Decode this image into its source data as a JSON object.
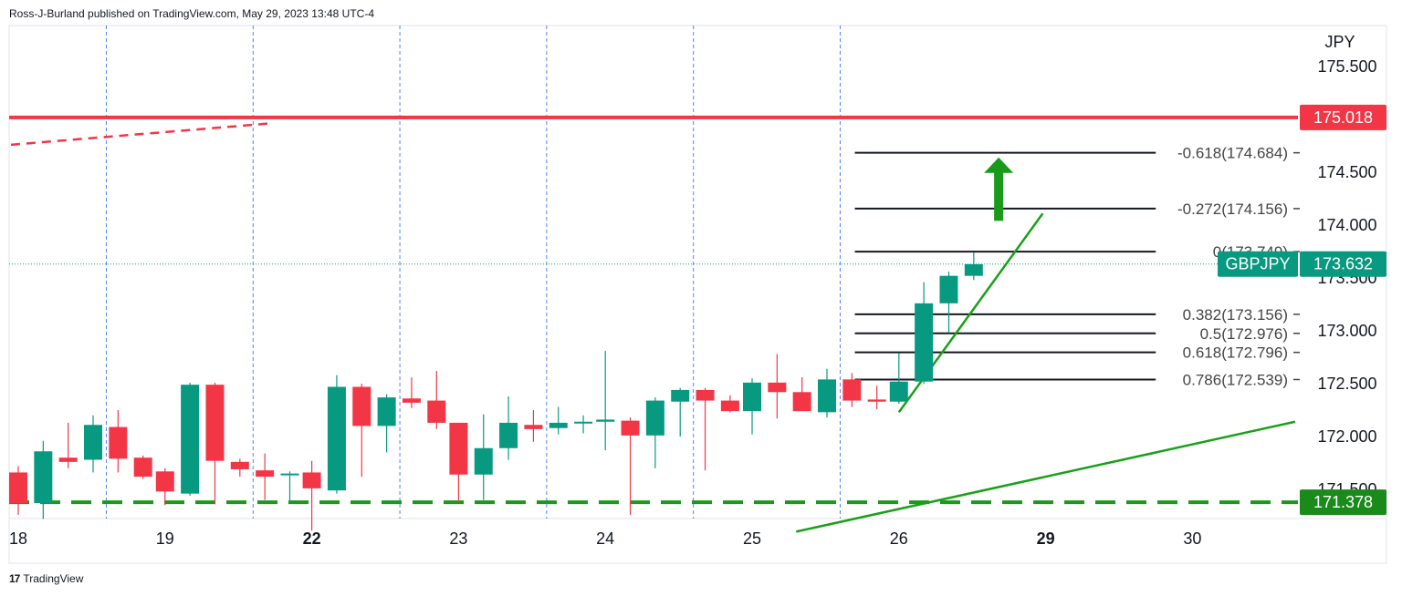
{
  "header": {
    "attribution": "Ross-J-Burland published on TradingView.com, May 29, 2023 13:48 UTC-4"
  },
  "footer": {
    "logo_text": "TradingView"
  },
  "colors": {
    "up": "#089981",
    "down": "#f23645",
    "resistance": "#f23645",
    "support": "#1a9a1a",
    "trend": "#18a018",
    "fib": "#131722",
    "arrow": "#1a9a1a",
    "grid": "#2962ff"
  },
  "chart_data": {
    "type": "candlestick",
    "symbol": "GBPJPY",
    "currency": "JPY",
    "last_price": 173.632,
    "y_ticks": [
      "175.500",
      "174.500",
      "174.000",
      "173.500",
      "173.000",
      "172.500",
      "172.000",
      "171.500"
    ],
    "y_tick_values": [
      175.5,
      174.5,
      174.0,
      173.5,
      173.0,
      172.5,
      172.0,
      171.5
    ],
    "ylim": [
      171.1,
      175.9
    ],
    "x_ticks": [
      {
        "label": "18",
        "day": 0,
        "bold": false
      },
      {
        "label": "19",
        "day": 1,
        "bold": false
      },
      {
        "label": "22",
        "day": 2,
        "bold": true
      },
      {
        "label": "23",
        "day": 3,
        "bold": false
      },
      {
        "label": "24",
        "day": 4,
        "bold": false
      },
      {
        "label": "25",
        "day": 5,
        "bold": false
      },
      {
        "label": "26",
        "day": 6,
        "bold": false
      },
      {
        "label": "29",
        "day": 7,
        "bold": true
      },
      {
        "label": "30",
        "day": 8,
        "bold": false
      }
    ],
    "session_separators": [
      0.6,
      1.6,
      2.6,
      3.6,
      4.6,
      5.6
    ],
    "candles": [
      {
        "t": 0.0,
        "o": 171.66,
        "h": 171.72,
        "l": 171.26,
        "c": 171.37
      },
      {
        "t": 0.17,
        "o": 171.37,
        "h": 171.96,
        "l": 171.22,
        "c": 171.86
      },
      {
        "t": 0.34,
        "o": 171.8,
        "h": 172.13,
        "l": 171.7,
        "c": 171.76
      },
      {
        "t": 0.51,
        "o": 171.78,
        "h": 172.2,
        "l": 171.66,
        "c": 172.11
      },
      {
        "t": 0.68,
        "o": 172.09,
        "h": 172.25,
        "l": 171.66,
        "c": 171.79
      },
      {
        "t": 0.85,
        "o": 171.8,
        "h": 171.82,
        "l": 171.6,
        "c": 171.62
      },
      {
        "t": 1.0,
        "o": 171.67,
        "h": 171.7,
        "l": 171.35,
        "c": 171.48
      },
      {
        "t": 1.17,
        "o": 171.46,
        "h": 172.51,
        "l": 171.44,
        "c": 172.49
      },
      {
        "t": 1.34,
        "o": 172.49,
        "h": 172.51,
        "l": 171.36,
        "c": 171.77
      },
      {
        "t": 1.51,
        "o": 171.76,
        "h": 171.79,
        "l": 171.62,
        "c": 171.69
      },
      {
        "t": 1.68,
        "o": 171.68,
        "h": 171.84,
        "l": 171.4,
        "c": 171.62
      },
      {
        "t": 1.85,
        "o": 171.64,
        "h": 171.67,
        "l": 171.38,
        "c": 171.65
      },
      {
        "t": 2.0,
        "o": 171.66,
        "h": 171.77,
        "l": 171.11,
        "c": 171.51
      },
      {
        "t": 2.17,
        "o": 171.49,
        "h": 172.58,
        "l": 171.46,
        "c": 172.47
      },
      {
        "t": 2.34,
        "o": 172.47,
        "h": 172.5,
        "l": 171.62,
        "c": 172.1
      },
      {
        "t": 2.51,
        "o": 172.1,
        "h": 172.4,
        "l": 171.85,
        "c": 172.37
      },
      {
        "t": 2.68,
        "o": 172.36,
        "h": 172.56,
        "l": 172.27,
        "c": 172.32
      },
      {
        "t": 2.85,
        "o": 172.34,
        "h": 172.62,
        "l": 172.07,
        "c": 172.13
      },
      {
        "t": 3.0,
        "o": 172.13,
        "h": 172.13,
        "l": 171.38,
        "c": 171.64
      },
      {
        "t": 3.17,
        "o": 171.64,
        "h": 172.21,
        "l": 171.4,
        "c": 171.89
      },
      {
        "t": 3.34,
        "o": 171.89,
        "h": 172.38,
        "l": 171.78,
        "c": 172.13
      },
      {
        "t": 3.51,
        "o": 172.11,
        "h": 172.25,
        "l": 171.95,
        "c": 172.07
      },
      {
        "t": 3.68,
        "o": 172.08,
        "h": 172.28,
        "l": 172.02,
        "c": 172.13
      },
      {
        "t": 3.85,
        "o": 172.13,
        "h": 172.2,
        "l": 172.03,
        "c": 172.14
      },
      {
        "t": 4.0,
        "o": 172.14,
        "h": 172.81,
        "l": 171.87,
        "c": 172.16
      },
      {
        "t": 4.17,
        "o": 172.15,
        "h": 172.18,
        "l": 171.26,
        "c": 172.01
      },
      {
        "t": 4.34,
        "o": 172.01,
        "h": 172.37,
        "l": 171.7,
        "c": 172.34
      },
      {
        "t": 4.51,
        "o": 172.33,
        "h": 172.46,
        "l": 172.0,
        "c": 172.44
      },
      {
        "t": 4.68,
        "o": 172.44,
        "h": 172.46,
        "l": 171.68,
        "c": 172.34
      },
      {
        "t": 4.85,
        "o": 172.34,
        "h": 172.39,
        "l": 172.23,
        "c": 172.24
      },
      {
        "t": 5.0,
        "o": 172.24,
        "h": 172.55,
        "l": 172.02,
        "c": 172.51
      },
      {
        "t": 5.17,
        "o": 172.51,
        "h": 172.78,
        "l": 172.17,
        "c": 172.42
      },
      {
        "t": 5.34,
        "o": 172.42,
        "h": 172.56,
        "l": 172.24,
        "c": 172.24
      },
      {
        "t": 5.51,
        "o": 172.23,
        "h": 172.64,
        "l": 172.18,
        "c": 172.54
      },
      {
        "t": 5.68,
        "o": 172.54,
        "h": 172.6,
        "l": 172.28,
        "c": 172.34
      },
      {
        "t": 5.85,
        "o": 172.35,
        "h": 172.48,
        "l": 172.26,
        "c": 172.33
      },
      {
        "t": 6.0,
        "o": 172.33,
        "h": 172.79,
        "l": 172.31,
        "c": 172.52
      },
      {
        "t": 6.17,
        "o": 172.52,
        "h": 173.46,
        "l": 172.5,
        "c": 173.26
      },
      {
        "t": 6.34,
        "o": 173.26,
        "h": 173.56,
        "l": 172.98,
        "c": 173.52
      },
      {
        "t": 6.51,
        "o": 173.52,
        "h": 173.74,
        "l": 173.48,
        "c": 173.63
      }
    ],
    "horizontal_levels": [
      {
        "name": "resistance",
        "value": 175.018,
        "label": "175.018",
        "style": "solid"
      },
      {
        "name": "support",
        "value": 171.378,
        "label": "171.378",
        "style": "dashed"
      }
    ],
    "fib_levels": [
      {
        "ratio": "-0.618",
        "value": "174.684",
        "label": "-0.618(174.684)",
        "price": 174.684
      },
      {
        "ratio": "-0.272",
        "value": "174.156",
        "label": "-0.272(174.156)",
        "price": 174.156
      },
      {
        "ratio": "0",
        "value": "173.749",
        "label": "0(173.749)",
        "price": 173.749
      },
      {
        "ratio": "0.382",
        "value": "173.156",
        "label": "0.382(173.156)",
        "price": 173.156
      },
      {
        "ratio": "0.5",
        "value": "172.976",
        "label": "0.5(172.976)",
        "price": 172.976
      },
      {
        "ratio": "0.618",
        "value": "172.796",
        "label": "0.618(172.796)",
        "price": 172.796
      },
      {
        "ratio": "0.786",
        "value": "172.539",
        "label": "0.786(172.539)",
        "price": 172.539
      }
    ],
    "fib_range": {
      "t0": 5.7,
      "t1": 7.75
    },
    "trendlines": [
      {
        "name": "short-uptrend",
        "style": "solid",
        "p1": {
          "t": 6.0,
          "v": 172.23
        },
        "p2": {
          "t": 6.98,
          "v": 174.11
        }
      },
      {
        "name": "long-uptrend",
        "style": "solid",
        "p1": {
          "t": 5.3,
          "v": 171.1
        },
        "p2": {
          "t": 8.7,
          "v": 172.14
        }
      },
      {
        "name": "broken-trend",
        "style": "dashed",
        "p1": {
          "t": -0.05,
          "v": 174.76
        },
        "p2": {
          "t": 1.7,
          "v": 174.96
        }
      }
    ],
    "arrow": {
      "t": 6.68,
      "from": 174.04,
      "to": 174.64,
      "direction": "up"
    }
  }
}
